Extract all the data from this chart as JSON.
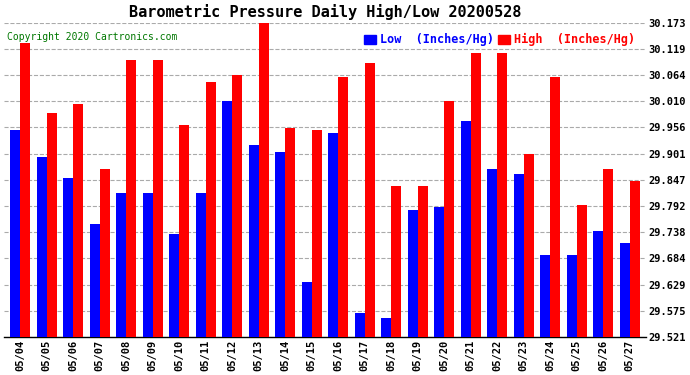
{
  "title": "Barometric Pressure Daily High/Low 20200528",
  "copyright": "Copyright 2020 Cartronics.com",
  "legend_low": "Low  (Inches/Hg)",
  "legend_high": "High  (Inches/Hg)",
  "dates": [
    "05/04",
    "05/05",
    "05/06",
    "05/07",
    "05/08",
    "05/09",
    "05/10",
    "05/11",
    "05/12",
    "05/13",
    "05/14",
    "05/15",
    "05/16",
    "05/17",
    "05/18",
    "05/19",
    "05/20",
    "05/21",
    "05/22",
    "05/23",
    "05/24",
    "05/25",
    "05/26",
    "05/27"
  ],
  "high": [
    30.13,
    29.985,
    30.005,
    29.87,
    30.095,
    30.095,
    29.96,
    30.05,
    30.065,
    30.2,
    29.955,
    29.95,
    30.06,
    30.09,
    29.835,
    29.835,
    30.01,
    30.11,
    30.11,
    29.9,
    30.06,
    29.795,
    29.87,
    29.845
  ],
  "low": [
    29.95,
    29.895,
    29.85,
    29.755,
    29.82,
    29.82,
    29.735,
    29.82,
    30.01,
    29.92,
    29.905,
    29.635,
    29.945,
    29.57,
    29.56,
    29.785,
    29.79,
    29.97,
    29.87,
    29.86,
    29.69,
    29.69,
    29.74,
    29.715
  ],
  "ylim_min": 29.521,
  "ylim_max": 30.173,
  "yticks": [
    29.521,
    29.575,
    29.629,
    29.684,
    29.738,
    29.792,
    29.847,
    29.901,
    29.956,
    30.01,
    30.064,
    30.119,
    30.173
  ],
  "bar_width": 0.38,
  "high_color": "#ff0000",
  "low_color": "#0000ff",
  "bg_color": "#ffffff",
  "grid_color": "#aaaaaa",
  "title_fontsize": 11,
  "tick_fontsize": 7.5,
  "legend_fontsize": 8.5
}
